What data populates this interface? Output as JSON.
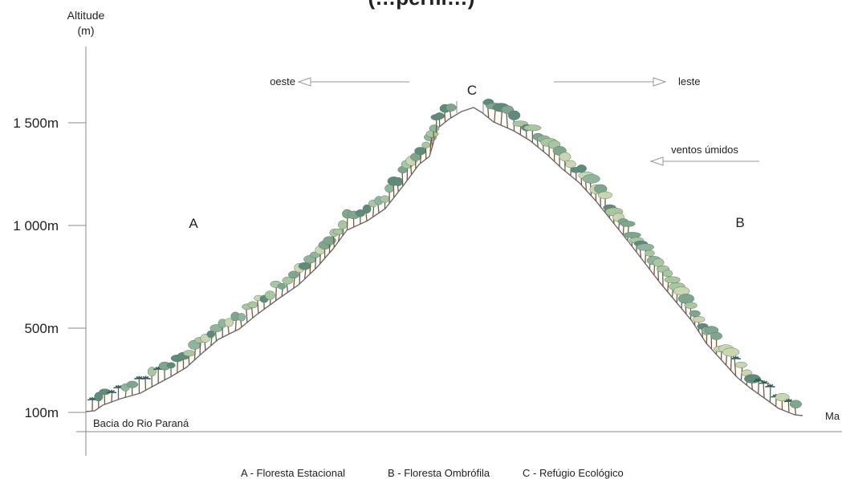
{
  "title_partial": "(…perfil…)",
  "axis": {
    "ylabel_line1": "Altitude",
    "ylabel_line2": "(m)",
    "ticks": [
      "1 500m",
      "1 000m",
      "500m",
      "100m"
    ]
  },
  "places": {
    "basin": "Bacia do Rio Paraná",
    "sea_partial": "Ma"
  },
  "directions": {
    "west": "oeste",
    "east": "leste",
    "winds": "ventos úmidos"
  },
  "zones": {
    "a": "A",
    "b": "B",
    "c": "C"
  },
  "legend": {
    "a": "A - Floresta Estacional",
    "b": "B - Floresta Ombrófila",
    "c": "C - Refúgio Ecológico"
  },
  "colors": {
    "ground": "#6a6a6a",
    "tree_canopy": [
      "#7fa58f",
      "#a9c79f",
      "#5f8b7b",
      "#c9d6b0",
      "#8fb59c"
    ],
    "tree_trunk": "#7b5a3c",
    "palm": "#2f5c57"
  }
}
